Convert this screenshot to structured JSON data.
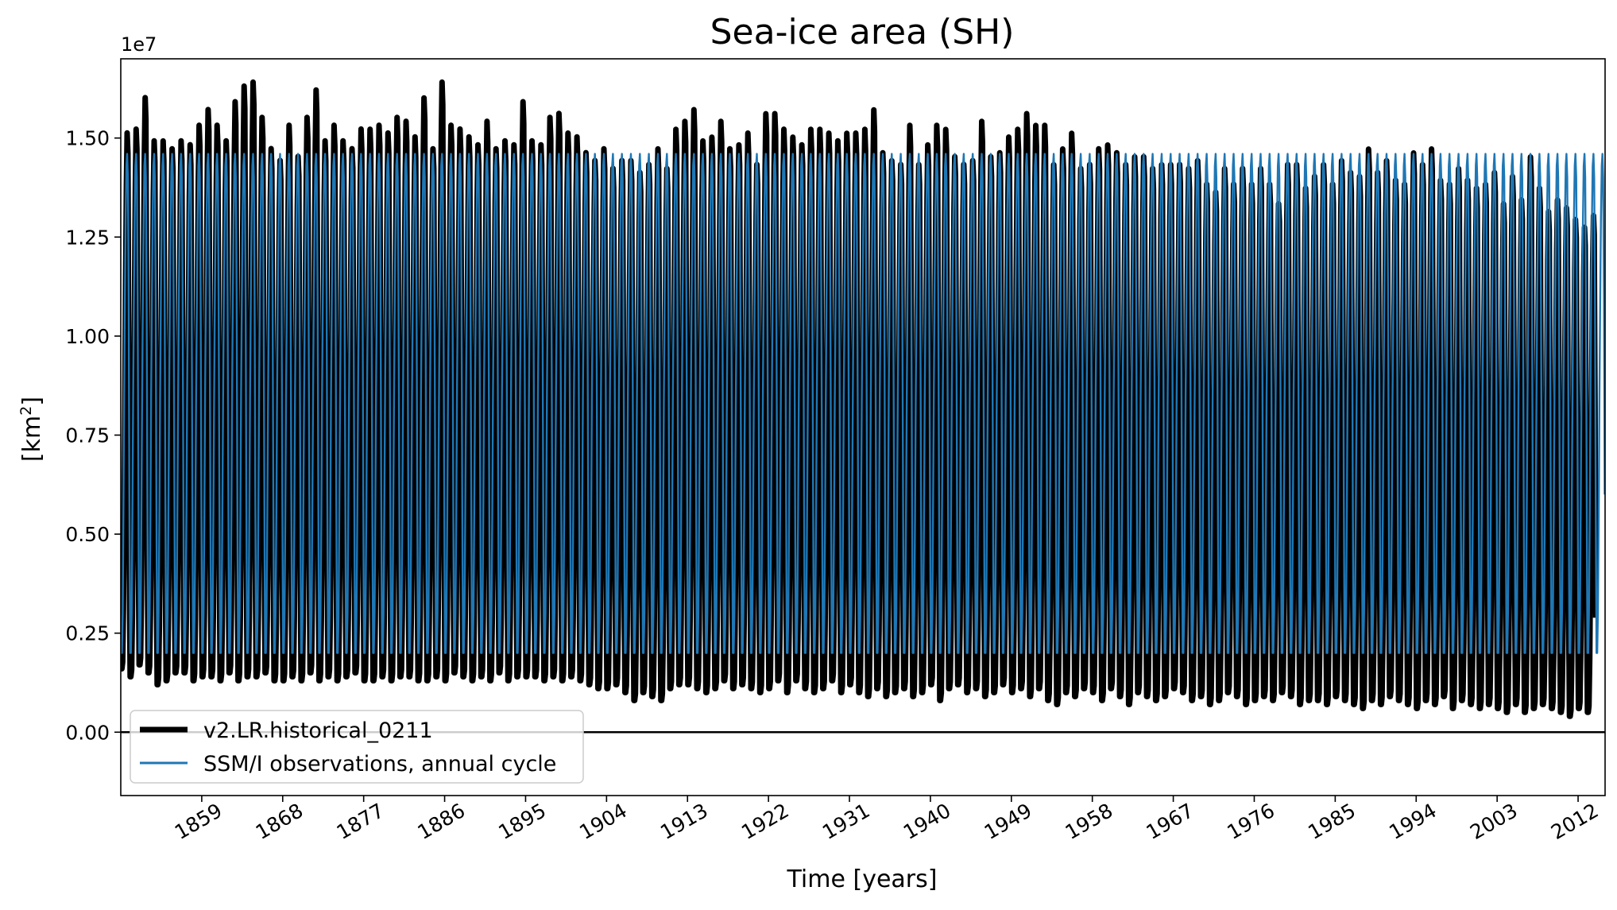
{
  "chart_data": {
    "type": "line",
    "title": "Sea-ice area (SH)",
    "xlabel": "Time [years]",
    "ylabel_text": "[km",
    "ylabel_sup": "2",
    "ylabel_close": "]",
    "offset_text": "1e7",
    "xlim": [
      1850,
      2015
    ],
    "ylim": [
      -1600000,
      17000000
    ],
    "x_ticks": [
      1859,
      1868,
      1877,
      1886,
      1895,
      1904,
      1913,
      1922,
      1931,
      1940,
      1949,
      1958,
      1967,
      1976,
      1985,
      1994,
      2003,
      2012
    ],
    "x_tick_labels": [
      "1859",
      "1868",
      "1877",
      "1886",
      "1895",
      "1904",
      "1913",
      "1922",
      "1931",
      "1940",
      "1949",
      "1958",
      "1967",
      "1976",
      "1985",
      "1994",
      "2003",
      "2012"
    ],
    "y_ticks": [
      0,
      2500000,
      5000000,
      7500000,
      10000000,
      12500000,
      15000000
    ],
    "y_tick_labels": [
      "0.00",
      "0.25",
      "0.50",
      "0.75",
      "1.00",
      "1.25",
      "1.50"
    ],
    "zero_line": true,
    "grid": false,
    "legend_position": "lower-left",
    "series": [
      {
        "name": "v2.LR.historical_0211",
        "color": "#000000",
        "kind": "model",
        "annual_max": [
          15300000,
          15400000,
          16200000,
          15100000,
          15100000,
          14900000,
          15100000,
          15000000,
          15500000,
          15900000,
          15500000,
          15100000,
          16100000,
          16500000,
          16600000,
          15700000,
          14900000,
          14600000,
          15500000,
          14700000,
          15700000,
          16400000,
          15100000,
          15500000,
          15100000,
          14900000,
          15400000,
          15400000,
          15500000,
          15300000,
          15700000,
          15600000,
          15200000,
          16200000,
          14900000,
          16600000,
          15500000,
          15400000,
          15200000,
          15000000,
          15600000,
          14900000,
          15100000,
          15000000,
          16100000,
          15100000,
          15000000,
          15700000,
          15800000,
          15300000,
          15200000,
          14800000,
          14600000,
          14900000,
          14400000,
          14600000,
          14600000,
          14300000,
          14500000,
          14900000,
          14400000,
          15400000,
          15600000,
          15900000,
          15100000,
          15200000,
          15600000,
          14900000,
          15000000,
          15300000,
          14500000,
          15800000,
          15800000,
          15400000,
          15200000,
          15000000,
          15400000,
          15400000,
          15300000,
          15100000,
          15300000,
          15300000,
          15400000,
          15900000,
          14800000,
          14600000,
          14500000,
          15500000,
          14500000,
          15000000,
          15500000,
          15400000,
          14700000,
          14500000,
          14600000,
          15600000,
          14700000,
          14800000,
          15200000,
          15400000,
          15800000,
          15500000,
          15500000,
          14500000,
          14900000,
          15300000,
          14400000,
          14500000,
          14900000,
          15000000,
          14800000,
          14500000,
          14700000,
          14700000,
          14400000,
          14500000,
          14500000,
          14500000,
          14400000,
          14600000,
          14000000,
          13800000,
          14400000,
          14000000,
          14400000,
          14000000,
          14400000,
          14000000,
          13500000,
          14500000,
          14500000,
          13900000,
          14200000,
          14500000,
          14000000,
          14600000,
          14300000,
          14200000,
          14900000,
          14300000,
          14600000,
          14100000,
          14000000,
          14800000,
          14500000,
          14900000,
          14100000,
          14000000,
          14400000,
          14100000,
          13900000,
          14000000,
          14300000,
          13500000,
          14200000,
          13600000,
          14700000,
          13900000,
          13300000,
          13600000,
          13400000,
          13100000,
          12900000,
          13200000,
          12800000
        ],
        "annual_min": [
          1600000,
          1400000,
          1700000,
          1500000,
          1200000,
          1300000,
          1500000,
          1500000,
          1300000,
          1400000,
          1400000,
          1300000,
          1500000,
          1300000,
          1400000,
          1400000,
          1500000,
          1300000,
          1300000,
          1400000,
          1300000,
          1500000,
          1300000,
          1400000,
          1300000,
          1400000,
          1500000,
          1300000,
          1300000,
          1400000,
          1300000,
          1400000,
          1400000,
          1300000,
          1300000,
          1400000,
          1300000,
          1500000,
          1400000,
          1300000,
          1400000,
          1300000,
          1500000,
          1300000,
          1400000,
          1400000,
          1400000,
          1300000,
          1400000,
          1300000,
          1400000,
          1300000,
          1200000,
          1100000,
          1100000,
          1200000,
          1000000,
          800000,
          1000000,
          900000,
          800000,
          1100000,
          1200000,
          1200000,
          1100000,
          1000000,
          1100000,
          1300000,
          1100000,
          1200000,
          1100000,
          1000000,
          1100000,
          1300000,
          1000000,
          1300000,
          1100000,
          1000000,
          1100000,
          1300000,
          1000000,
          1200000,
          1000000,
          900000,
          1100000,
          900000,
          1000000,
          1100000,
          900000,
          1000000,
          1200000,
          800000,
          1100000,
          1200000,
          1000000,
          1100000,
          900000,
          1000000,
          1200000,
          1000000,
          1100000,
          900000,
          1100000,
          800000,
          700000,
          1000000,
          900000,
          1100000,
          1000000,
          800000,
          1100000,
          900000,
          700000,
          1000000,
          900000,
          800000,
          900000,
          1100000,
          1000000,
          800000,
          900000,
          700000,
          800000,
          1000000,
          900000,
          700000,
          800000,
          900000,
          800000,
          1000000,
          900000,
          700000,
          800000,
          800000,
          700000,
          900000,
          800000,
          700000,
          600000,
          800000,
          700000,
          900000,
          800000,
          700000,
          600000,
          800000,
          700000,
          900000,
          600000,
          800000,
          700000,
          600000,
          700000,
          600000,
          500000,
          700000,
          500000,
          600000,
          700000,
          600000,
          500000,
          400000,
          600000,
          500000
        ]
      },
      {
        "name": "SSM/I observations, annual cycle",
        "color": "#1f77b4",
        "kind": "climatology",
        "monthly_climatology": [
          2000000,
          2000000,
          3000000,
          5500000,
          8500000,
          11000000,
          13000000,
          14300000,
          14600000,
          14000000,
          11000000,
          6000000
        ]
      }
    ]
  }
}
